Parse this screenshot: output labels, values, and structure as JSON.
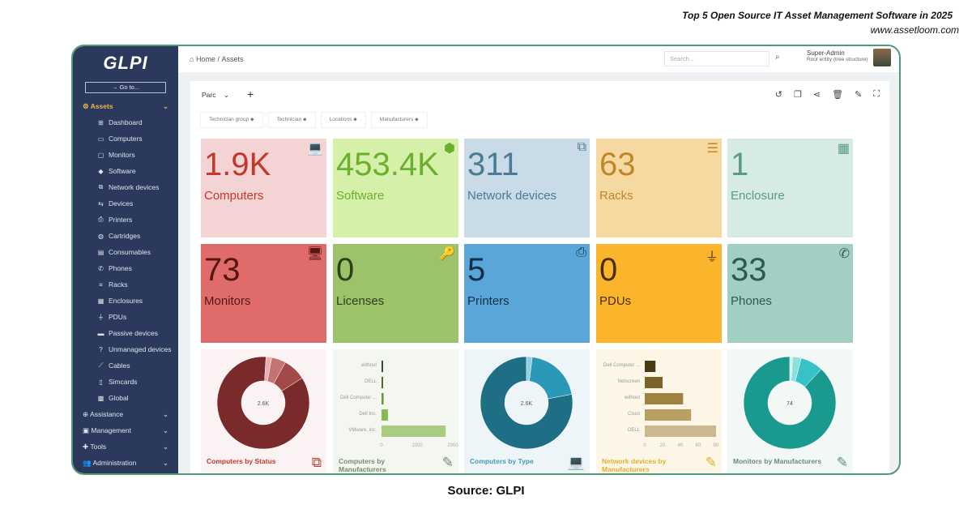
{
  "banner": {
    "title": "Top 5 Open Source IT Asset Management Software in 2025",
    "url": "www.assetloom.com"
  },
  "source": "Source: GLPI",
  "sidebar": {
    "logo": "GLPI",
    "goto": "Go to...",
    "sections": [
      {
        "label": "Assets",
        "icon": "⚙",
        "active": true,
        "items": [
          {
            "label": "Dashboard",
            "icon": "⊞"
          },
          {
            "label": "Computers",
            "icon": "▭"
          },
          {
            "label": "Monitors",
            "icon": "▢"
          },
          {
            "label": "Software",
            "icon": "◆"
          },
          {
            "label": "Network devices",
            "icon": "⧉"
          },
          {
            "label": "Devices",
            "icon": "⇆"
          },
          {
            "label": "Printers",
            "icon": "⎙"
          },
          {
            "label": "Cartridges",
            "icon": "◍"
          },
          {
            "label": "Consumables",
            "icon": "▤"
          },
          {
            "label": "Phones",
            "icon": "✆"
          },
          {
            "label": "Racks",
            "icon": "≡"
          },
          {
            "label": "Enclosures",
            "icon": "▦"
          },
          {
            "label": "PDUs",
            "icon": "⏚"
          },
          {
            "label": "Passive devices",
            "icon": "▬"
          },
          {
            "label": "Unmanaged devices",
            "icon": "?"
          },
          {
            "label": "Cables",
            "icon": "⟋"
          },
          {
            "label": "Simcards",
            "icon": "▯"
          },
          {
            "label": "Global",
            "icon": "▩"
          }
        ]
      },
      {
        "label": "Assistance",
        "icon": "⊕"
      },
      {
        "label": "Management",
        "icon": "▣"
      },
      {
        "label": "Tools",
        "icon": "✚"
      },
      {
        "label": "Administration",
        "icon": "👥"
      }
    ]
  },
  "header": {
    "breadcrumb": [
      "Home",
      "Assets"
    ],
    "search_placeholder": "Search...",
    "user": "Super-Admin",
    "entity": "Root entity (tree structure)"
  },
  "dashboard": {
    "selector": "Parc",
    "filters": [
      "Technician group",
      "Technician",
      "Locations",
      "Manufacturers"
    ]
  },
  "tiles": [
    {
      "value": "1.9K",
      "label": "Computers",
      "icon": "laptop-icon",
      "glyph": "💻",
      "bg": "#f4d3d5",
      "fg": "#c0392b"
    },
    {
      "value": "453.4K",
      "label": "Software",
      "icon": "cube-icon",
      "glyph": "⬢",
      "bg": "#d5f0a8",
      "fg": "#6cae2e"
    },
    {
      "value": "311",
      "label": "Network devices",
      "icon": "network-icon",
      "glyph": "⧉",
      "bg": "#c9dbe6",
      "fg": "#4a7a96"
    },
    {
      "value": "63",
      "label": "Racks",
      "icon": "server-icon",
      "glyph": "☰",
      "bg": "#f5d9a0",
      "fg": "#c0862c"
    },
    {
      "value": "1",
      "label": "Enclosure",
      "icon": "grid-icon",
      "glyph": "▦",
      "bg": "#d5ebe3",
      "fg": "#5a9a86"
    },
    {
      "value": "73",
      "label": "Monitors",
      "icon": "monitor-icon",
      "glyph": "🖥",
      "bg": "#e06b6b",
      "fg": "#5a1414"
    },
    {
      "value": "0",
      "label": "Licenses",
      "icon": "key-icon",
      "glyph": "🔑",
      "bg": "#9cc26a",
      "fg": "#2d3f16"
    },
    {
      "value": "5",
      "label": "Printers",
      "icon": "printer-icon",
      "glyph": "⎙",
      "bg": "#5aa6d9",
      "fg": "#10304a"
    },
    {
      "value": "0",
      "label": "PDUs",
      "icon": "plug-icon",
      "glyph": "⏚",
      "bg": "#fbb52c",
      "fg": "#4a3000"
    },
    {
      "value": "33",
      "label": "Phones",
      "icon": "phone-icon",
      "glyph": "✆",
      "bg": "#a2cfc3",
      "fg": "#2b5a4e"
    }
  ],
  "chart_data": [
    {
      "type": "pie",
      "title": "Computers by Status",
      "center": "2.6K",
      "values": [
        85,
        8,
        5,
        2
      ],
      "colors": [
        "#7a2a2a",
        "#a24a4a",
        "#c57272",
        "#e8b0b0"
      ],
      "bg": "#fbf3f3",
      "fg": "#c0392b"
    },
    {
      "type": "bar",
      "title": "Computers by Manufacturers",
      "categories": [
        "without",
        "DELL",
        "Dell Computer ...",
        "Dell Inc.",
        "VMware, inc."
      ],
      "values": [
        10,
        30,
        60,
        180,
        1800
      ],
      "xlim": [
        0,
        2000
      ],
      "ticks": [
        "0",
        "1000",
        "2000"
      ],
      "colors": [
        "#3c4a2a",
        "#4e6a2e",
        "#6a9a3a",
        "#86bb56",
        "#a8cc82"
      ],
      "bg": "#f4f6f0",
      "fg": "#7a8a6a"
    },
    {
      "type": "pie",
      "title": "Computers by Type",
      "center": "2.6K",
      "values": [
        78,
        20,
        2
      ],
      "colors": [
        "#1e6f86",
        "#2a98b6",
        "#8dd0e0"
      ],
      "bg": "#eef5f8",
      "fg": "#4a9ab4"
    },
    {
      "type": "bar",
      "title": "Network devices by Manufacturers",
      "categories": [
        "Dell Computer ...",
        "Netscreen",
        "without",
        "Cisco",
        "DELL"
      ],
      "values": [
        12,
        20,
        43,
        52,
        80
      ],
      "xlim": [
        0,
        80
      ],
      "ticks": [
        "0",
        "20",
        "40",
        "60",
        "80"
      ],
      "colors": [
        "#4a3a14",
        "#7a6228",
        "#9e8240",
        "#b8a064",
        "#cbb88e"
      ],
      "bg": "#fdf6e6",
      "fg": "#e0b030"
    },
    {
      "type": "pie",
      "title": "Monitors by Manufacturers",
      "center": "74",
      "values": [
        88,
        8,
        3,
        1
      ],
      "colors": [
        "#1a9a8e",
        "#36c2c6",
        "#8ee0dc",
        "#cfeeee"
      ],
      "bg": "#f1f8f6",
      "fg": "#6a8a86"
    }
  ]
}
